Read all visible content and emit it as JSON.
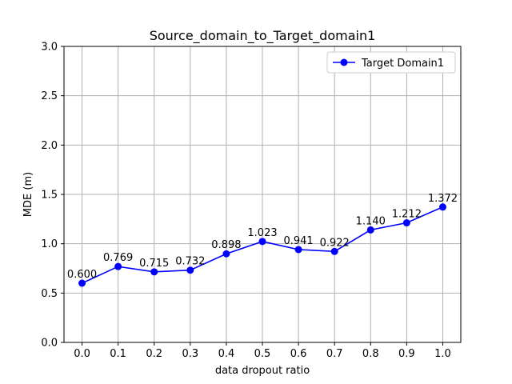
{
  "chart_data": {
    "type": "line",
    "title": "Source_domain_to_Target_domain1",
    "xlabel": "data dropout ratio",
    "ylabel": "MDE (m)",
    "x": [
      0.0,
      0.1,
      0.2,
      0.3,
      0.4,
      0.5,
      0.6,
      0.7,
      0.8,
      0.9,
      1.0
    ],
    "x_ticks": [
      "0.0",
      "0.1",
      "0.2",
      "0.3",
      "0.4",
      "0.5",
      "0.6",
      "0.7",
      "0.8",
      "0.9",
      "1.0"
    ],
    "y_ticks": [
      "0.0",
      "0.5",
      "1.0",
      "1.5",
      "2.0",
      "2.5",
      "3.0"
    ],
    "xlim": [
      -0.05,
      1.05
    ],
    "ylim": [
      0.0,
      3.0
    ],
    "grid": true,
    "legend_position": "top-right",
    "series": [
      {
        "name": "Target Domain1",
        "color": "#0000ff",
        "marker": "circle",
        "values": [
          0.6,
          0.769,
          0.715,
          0.732,
          0.898,
          1.023,
          0.941,
          0.922,
          1.14,
          1.212,
          1.372
        ],
        "labels": [
          "0.600",
          "0.769",
          "0.715",
          "0.732",
          "0.898",
          "1.023",
          "0.941",
          "0.922",
          "1.140",
          "1.212",
          "1.372"
        ]
      }
    ]
  }
}
